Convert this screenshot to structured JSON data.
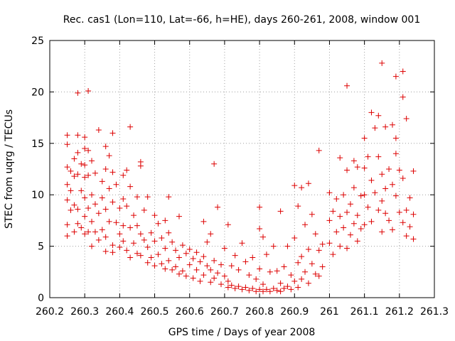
{
  "chart_data": {
    "type": "scatter",
    "title": "Rec. cas1 (Lon=110, Lat=-66, h=HE), days 260-261, 2008, window 001",
    "xlabel": "GPS time / Days of year 2008",
    "ylabel": "STEC from uqrg / TECUs",
    "xlim": [
      260.2,
      261.3
    ],
    "ylim": [
      0,
      25
    ],
    "xticks": [
      260.2,
      260.3,
      260.4,
      260.5,
      260.6,
      260.7,
      260.8,
      260.9,
      261.0,
      261.1,
      261.2,
      261.3
    ],
    "xtick_labels": [
      "260.2",
      "260.3",
      "260.4",
      "260.5",
      "260.6",
      "260.7",
      "260.8",
      "260.9",
      "261",
      "261.1",
      "261.2",
      "261.3"
    ],
    "yticks": [
      0,
      5,
      10,
      15,
      20,
      25
    ],
    "ytick_labels": [
      "0",
      "5",
      "10",
      "15",
      "20",
      "25"
    ],
    "grid": true,
    "marker": "+",
    "color": "#dd0000",
    "series": [
      {
        "name": "STEC",
        "points": [
          [
            260.25,
            15.8
          ],
          [
            260.25,
            14.9
          ],
          [
            260.25,
            12.7
          ],
          [
            260.25,
            11.0
          ],
          [
            260.25,
            9.5
          ],
          [
            260.25,
            7.1
          ],
          [
            260.25,
            6.0
          ],
          [
            260.26,
            12.3
          ],
          [
            260.26,
            10.4
          ],
          [
            260.26,
            8.5
          ],
          [
            260.27,
            13.5
          ],
          [
            260.27,
            11.8
          ],
          [
            260.27,
            9.0
          ],
          [
            260.27,
            6.4
          ],
          [
            260.28,
            19.9
          ],
          [
            260.28,
            15.8
          ],
          [
            260.28,
            14.1
          ],
          [
            260.28,
            12.0
          ],
          [
            260.28,
            8.6
          ],
          [
            260.28,
            7.2
          ],
          [
            260.29,
            13.0
          ],
          [
            260.29,
            10.4
          ],
          [
            260.29,
            6.8
          ],
          [
            260.3,
            15.6
          ],
          [
            260.3,
            14.5
          ],
          [
            260.3,
            12.9
          ],
          [
            260.3,
            11.7
          ],
          [
            260.3,
            9.7
          ],
          [
            260.3,
            7.9
          ],
          [
            260.3,
            6.2
          ],
          [
            260.31,
            20.1
          ],
          [
            260.31,
            14.3
          ],
          [
            260.31,
            11.9
          ],
          [
            260.31,
            8.7
          ],
          [
            260.31,
            6.4
          ],
          [
            260.32,
            13.3
          ],
          [
            260.32,
            10.0
          ],
          [
            260.32,
            7.4
          ],
          [
            260.32,
            5.0
          ],
          [
            260.33,
            12.1
          ],
          [
            260.33,
            9.1
          ],
          [
            260.33,
            6.4
          ],
          [
            260.34,
            16.3
          ],
          [
            260.34,
            8.2
          ],
          [
            260.34,
            5.6
          ],
          [
            260.35,
            11.3
          ],
          [
            260.35,
            9.7
          ],
          [
            260.35,
            6.6
          ],
          [
            260.36,
            14.7
          ],
          [
            260.36,
            12.5
          ],
          [
            260.36,
            8.6
          ],
          [
            260.36,
            5.9
          ],
          [
            260.36,
            4.5
          ],
          [
            260.37,
            13.8
          ],
          [
            260.37,
            10.6
          ],
          [
            260.37,
            7.4
          ],
          [
            260.38,
            16.0
          ],
          [
            260.38,
            12.2
          ],
          [
            260.38,
            9.3
          ],
          [
            260.38,
            5.1
          ],
          [
            260.38,
            4.4
          ],
          [
            260.39,
            11.0
          ],
          [
            260.39,
            7.3
          ],
          [
            260.4,
            8.7
          ],
          [
            260.4,
            6.2
          ],
          [
            260.4,
            4.9
          ],
          [
            260.41,
            11.9
          ],
          [
            260.41,
            9.6
          ],
          [
            260.41,
            7.0
          ],
          [
            260.41,
            5.5
          ],
          [
            260.42,
            12.4
          ],
          [
            260.42,
            8.9
          ],
          [
            260.42,
            4.6
          ],
          [
            260.43,
            16.6
          ],
          [
            260.43,
            10.8
          ],
          [
            260.43,
            6.8
          ],
          [
            260.43,
            3.9
          ],
          [
            260.44,
            8.0
          ],
          [
            260.44,
            5.3
          ],
          [
            260.45,
            9.8
          ],
          [
            260.45,
            7.0
          ],
          [
            260.45,
            4.3
          ],
          [
            260.46,
            13.2
          ],
          [
            260.46,
            12.8
          ],
          [
            260.46,
            6.2
          ],
          [
            260.46,
            4.1
          ],
          [
            260.47,
            8.5
          ],
          [
            260.47,
            5.6
          ],
          [
            260.48,
            9.8
          ],
          [
            260.48,
            4.9
          ],
          [
            260.48,
            3.4
          ],
          [
            260.49,
            6.3
          ],
          [
            260.49,
            3.9
          ],
          [
            260.5,
            8.0
          ],
          [
            260.5,
            5.5
          ],
          [
            260.5,
            3.1
          ],
          [
            260.51,
            7.2
          ],
          [
            260.51,
            4.2
          ],
          [
            260.52,
            5.8
          ],
          [
            260.52,
            3.3
          ],
          [
            260.53,
            7.5
          ],
          [
            260.53,
            4.8
          ],
          [
            260.53,
            2.8
          ],
          [
            260.54,
            9.8
          ],
          [
            260.54,
            6.3
          ],
          [
            260.54,
            3.6
          ],
          [
            260.55,
            5.4
          ],
          [
            260.55,
            2.7
          ],
          [
            260.56,
            4.6
          ],
          [
            260.56,
            3.0
          ],
          [
            260.57,
            7.9
          ],
          [
            260.57,
            3.9
          ],
          [
            260.57,
            2.3
          ],
          [
            260.58,
            5.1
          ],
          [
            260.58,
            2.6
          ],
          [
            260.59,
            4.3
          ],
          [
            260.59,
            2.1
          ],
          [
            260.6,
            4.7
          ],
          [
            260.6,
            3.2
          ],
          [
            260.61,
            3.8
          ],
          [
            260.61,
            1.9
          ],
          [
            260.62,
            4.4
          ],
          [
            260.62,
            2.7
          ],
          [
            260.63,
            3.5
          ],
          [
            260.63,
            1.6
          ],
          [
            260.64,
            7.4
          ],
          [
            260.64,
            4.0
          ],
          [
            260.64,
            2.2
          ],
          [
            260.65,
            5.4
          ],
          [
            260.65,
            3.1
          ],
          [
            260.66,
            6.2
          ],
          [
            260.66,
            2.7
          ],
          [
            260.66,
            1.5
          ],
          [
            260.67,
            13.0
          ],
          [
            260.67,
            3.6
          ],
          [
            260.67,
            1.9
          ],
          [
            260.68,
            8.8
          ],
          [
            260.68,
            2.4
          ],
          [
            260.69,
            3.2
          ],
          [
            260.69,
            1.3
          ],
          [
            260.7,
            4.8
          ],
          [
            260.7,
            2.1
          ],
          [
            260.71,
            7.1
          ],
          [
            260.71,
            1.6
          ],
          [
            260.71,
            1.0
          ],
          [
            260.72,
            3.1
          ],
          [
            260.72,
            1.2
          ],
          [
            260.73,
            4.1
          ],
          [
            260.73,
            0.9
          ],
          [
            260.74,
            2.7
          ],
          [
            260.74,
            1.1
          ],
          [
            260.75,
            5.3
          ],
          [
            260.75,
            0.8
          ],
          [
            260.76,
            3.5
          ],
          [
            260.76,
            1.0
          ],
          [
            260.77,
            2.2
          ],
          [
            260.77,
            0.7
          ],
          [
            260.78,
            3.9
          ],
          [
            260.78,
            0.9
          ],
          [
            260.79,
            1.8
          ],
          [
            260.79,
            0.6
          ],
          [
            260.8,
            8.8
          ],
          [
            260.8,
            6.7
          ],
          [
            260.8,
            2.8
          ],
          [
            260.8,
            0.8
          ],
          [
            260.81,
            5.9
          ],
          [
            260.81,
            1.3
          ],
          [
            260.81,
            0.6
          ],
          [
            260.82,
            4.2
          ],
          [
            260.82,
            0.8
          ],
          [
            260.83,
            2.5
          ],
          [
            260.83,
            0.6
          ],
          [
            260.84,
            5.0
          ],
          [
            260.84,
            0.9
          ],
          [
            260.85,
            2.6
          ],
          [
            260.85,
            0.7
          ],
          [
            260.86,
            8.4
          ],
          [
            260.86,
            1.4
          ],
          [
            260.86,
            0.6
          ],
          [
            260.87,
            3.0
          ],
          [
            260.87,
            0.9
          ],
          [
            260.88,
            5.0
          ],
          [
            260.88,
            1.1
          ],
          [
            260.89,
            2.2
          ],
          [
            260.89,
            0.8
          ],
          [
            260.9,
            10.9
          ],
          [
            260.9,
            5.8
          ],
          [
            260.9,
            1.6
          ],
          [
            260.91,
            8.9
          ],
          [
            260.91,
            3.4
          ],
          [
            260.91,
            1.0
          ],
          [
            260.92,
            10.7
          ],
          [
            260.92,
            4.0
          ],
          [
            260.92,
            1.8
          ],
          [
            260.93,
            7.1
          ],
          [
            260.93,
            2.5
          ],
          [
            260.94,
            11.1
          ],
          [
            260.94,
            4.7
          ],
          [
            260.94,
            1.4
          ],
          [
            260.95,
            8.1
          ],
          [
            260.95,
            3.3
          ],
          [
            260.96,
            6.2
          ],
          [
            260.96,
            2.3
          ],
          [
            260.97,
            14.3
          ],
          [
            260.97,
            4.6
          ],
          [
            260.97,
            2.1
          ],
          [
            260.98,
            5.2
          ],
          [
            260.98,
            3.0
          ],
          [
            261.0,
            10.2
          ],
          [
            261.0,
            7.5
          ],
          [
            261.0,
            5.3
          ],
          [
            261.01,
            8.4
          ],
          [
            261.01,
            4.2
          ],
          [
            261.02,
            9.6
          ],
          [
            261.02,
            6.4
          ],
          [
            261.03,
            13.6
          ],
          [
            261.03,
            7.9
          ],
          [
            261.03,
            5.0
          ],
          [
            261.04,
            10.0
          ],
          [
            261.04,
            6.8
          ],
          [
            261.05,
            20.6
          ],
          [
            261.05,
            12.4
          ],
          [
            261.05,
            8.3
          ],
          [
            261.05,
            4.8
          ],
          [
            261.06,
            9.1
          ],
          [
            261.06,
            6.1
          ],
          [
            261.07,
            13.3
          ],
          [
            261.07,
            10.7
          ],
          [
            261.07,
            7.2
          ],
          [
            261.08,
            12.7
          ],
          [
            261.08,
            8.0
          ],
          [
            261.08,
            5.5
          ],
          [
            261.09,
            9.9
          ],
          [
            261.09,
            6.7
          ],
          [
            261.1,
            15.5
          ],
          [
            261.1,
            12.6
          ],
          [
            261.1,
            10.0
          ],
          [
            261.1,
            7.1
          ],
          [
            261.11,
            13.7
          ],
          [
            261.11,
            8.8
          ],
          [
            261.12,
            18.0
          ],
          [
            261.12,
            11.4
          ],
          [
            261.12,
            7.4
          ],
          [
            261.13,
            16.5
          ],
          [
            261.13,
            10.2
          ],
          [
            261.14,
            17.7
          ],
          [
            261.14,
            13.7
          ],
          [
            261.14,
            8.5
          ],
          [
            261.15,
            22.8
          ],
          [
            261.15,
            12.0
          ],
          [
            261.15,
            9.4
          ],
          [
            261.15,
            6.4
          ],
          [
            261.16,
            16.6
          ],
          [
            261.16,
            10.6
          ],
          [
            261.16,
            8.2
          ],
          [
            261.17,
            12.5
          ],
          [
            261.17,
            7.5
          ],
          [
            261.18,
            16.8
          ],
          [
            261.18,
            11.0
          ],
          [
            261.18,
            6.6
          ],
          [
            261.19,
            21.5
          ],
          [
            261.19,
            15.5
          ],
          [
            261.19,
            14.0
          ],
          [
            261.19,
            9.9
          ],
          [
            261.2,
            12.4
          ],
          [
            261.2,
            8.3
          ],
          [
            261.21,
            22.0
          ],
          [
            261.21,
            19.5
          ],
          [
            261.21,
            11.6
          ],
          [
            261.21,
            7.3
          ],
          [
            261.22,
            17.4
          ],
          [
            261.22,
            8.5
          ],
          [
            261.22,
            6.0
          ],
          [
            261.23,
            9.7
          ],
          [
            261.23,
            6.9
          ],
          [
            261.24,
            12.3
          ],
          [
            261.24,
            8.1
          ],
          [
            261.24,
            5.7
          ]
        ]
      }
    ]
  }
}
